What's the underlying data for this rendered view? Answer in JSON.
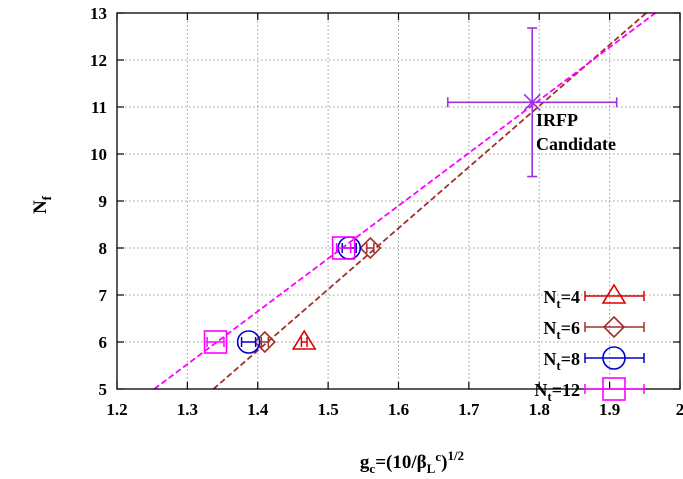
{
  "chart_data": {
    "type": "scatter",
    "title": "",
    "xlabel": {
      "base": "g",
      "base_sub": "c",
      "mid": "=(10/β",
      "mid_sub": "L",
      "mid_sup": "c",
      "tail": ")",
      "tail_sup": "1/2"
    },
    "ylabel": {
      "base": "N",
      "sub": "f"
    },
    "xlim": [
      1.2,
      2.0
    ],
    "ylim": [
      5,
      13
    ],
    "xticks": [
      "1.2",
      "1.3",
      "1.4",
      "1.5",
      "1.6",
      "1.7",
      "1.8",
      "1.9",
      "2"
    ],
    "yticks": [
      "5",
      "6",
      "7",
      "8",
      "9",
      "10",
      "11",
      "12",
      "13"
    ],
    "xtick_values": [
      1.2,
      1.3,
      1.4,
      1.5,
      1.6,
      1.7,
      1.8,
      1.9,
      2.0
    ],
    "ytick_values": [
      5,
      6,
      7,
      8,
      9,
      10,
      11,
      12,
      13
    ],
    "grid": true,
    "legend_position": "bottom-right",
    "series": [
      {
        "name": "4",
        "marker": "triangle",
        "color": "#dd0000",
        "points": [
          {
            "x": 1.466,
            "y": 6,
            "xerr": 0.004
          }
        ]
      },
      {
        "name": "6",
        "marker": "diamond",
        "color": "#a0302a",
        "points": [
          {
            "x": 1.41,
            "y": 6,
            "xerr": 0.005
          },
          {
            "x": 1.56,
            "y": 8,
            "xerr": 0.005
          }
        ]
      },
      {
        "name": "8",
        "marker": "circle",
        "color": "#0000cc",
        "points": [
          {
            "x": 1.387,
            "y": 6,
            "xerr": 0.01
          },
          {
            "x": 1.53,
            "y": 8,
            "xerr": 0.01
          }
        ]
      },
      {
        "name": "12",
        "marker": "square",
        "color": "#ff00ff",
        "points": [
          {
            "x": 1.34,
            "y": 6,
            "xerr": 0.012
          },
          {
            "x": 1.522,
            "y": 8,
            "xerr": 0.01
          }
        ]
      }
    ],
    "legend_label_prefix": {
      "base": "N",
      "sub": "t",
      "eq": "="
    },
    "fit_lines": [
      {
        "color": "#a0302a",
        "x1": 1.337,
        "y1": 5,
        "x2": 1.952,
        "y2": 13
      },
      {
        "color": "#ff00ff",
        "x1": 1.253,
        "y1": 5,
        "x2": 1.965,
        "y2": 13
      }
    ],
    "candidate": {
      "x": 1.79,
      "y": 11.1,
      "xerr_low": 0.12,
      "xerr_high": 0.12,
      "yerr_low": 1.58,
      "yerr_high": 1.58,
      "color": "#9933dd",
      "label_line1": "IRFP",
      "label_line2": "Candidate"
    }
  }
}
